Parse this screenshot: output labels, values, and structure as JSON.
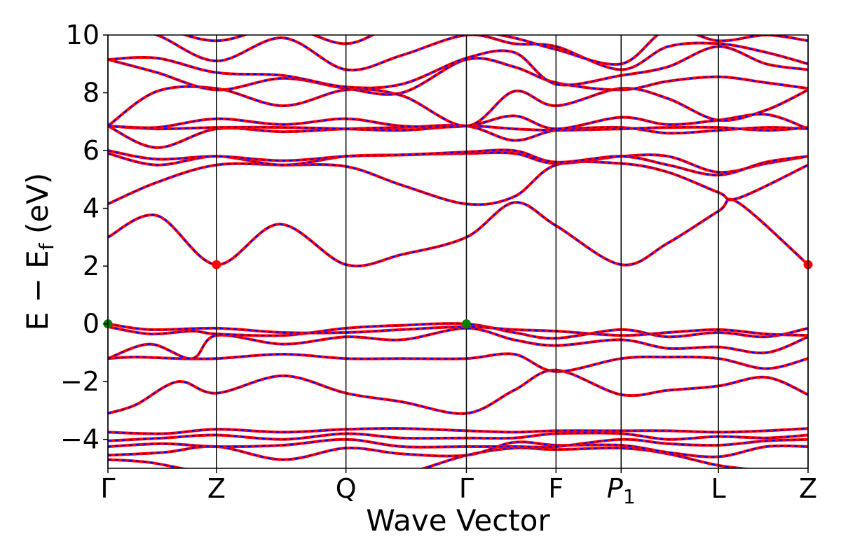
{
  "chart_data": {
    "type": "line",
    "xlabel": "Wave Vector",
    "ylabel_parts": {
      "main": "E − E",
      "sub": "f",
      "unit": " (eV)"
    },
    "ylim": [
      -5,
      10
    ],
    "yticks": [
      -4,
      -2,
      0,
      2,
      4,
      6,
      8,
      10
    ],
    "ytick_labels": [
      "−4",
      "−2",
      "0",
      "2",
      "4",
      "6",
      "8",
      "10"
    ],
    "kpoints": [
      {
        "label": "Γ",
        "x": 0.0
      },
      {
        "label": "Z",
        "x": 0.155
      },
      {
        "label": "Q",
        "x": 0.34
      },
      {
        "label": "Γ",
        "x": 0.512
      },
      {
        "label": "F",
        "x": 0.64
      },
      {
        "label": "P",
        "sub": "1",
        "italic": true,
        "x": 0.733
      },
      {
        "label": "L",
        "x": 0.872
      },
      {
        "label": "Z",
        "x": 1.0
      }
    ],
    "xlim": [
      0,
      1
    ],
    "line_colors": {
      "solid": "#ff0000",
      "dashed": "#0000ff"
    },
    "marker_colors": {
      "vbm": "#008000",
      "cbm": "#ff0000"
    },
    "markers": [
      {
        "kind": "vbm",
        "x": 0.0,
        "y": 0.0
      },
      {
        "kind": "vbm",
        "x": 0.512,
        "y": 0.0
      },
      {
        "kind": "cbm",
        "x": 0.155,
        "y": 2.05
      },
      {
        "kind": "cbm",
        "x": 1.0,
        "y": 2.05
      }
    ],
    "bands": [
      [
        [
          0,
          -4.7
        ],
        [
          0.06,
          -4.8
        ],
        [
          0.155,
          -5.2
        ],
        [
          0.25,
          -5.25
        ],
        [
          0.34,
          -5.3
        ],
        [
          0.42,
          -5.2
        ],
        [
          0.512,
          -4.55
        ],
        [
          0.58,
          -4.3
        ],
        [
          0.64,
          -4.35
        ],
        [
          0.733,
          -4.3
        ],
        [
          0.8,
          -4.5
        ],
        [
          0.872,
          -4.9
        ],
        [
          0.94,
          -5.1
        ],
        [
          1.0,
          -5.3
        ]
      ],
      [
        [
          0,
          -4.55
        ],
        [
          0.08,
          -4.45
        ],
        [
          0.155,
          -4.25
        ],
        [
          0.25,
          -4.7
        ],
        [
          0.34,
          -4.3
        ],
        [
          0.42,
          -4.5
        ],
        [
          0.512,
          -4.55
        ],
        [
          0.58,
          -4.1
        ],
        [
          0.64,
          -4.2
        ],
        [
          0.733,
          -4.2
        ],
        [
          0.8,
          -4.45
        ],
        [
          0.872,
          -4.6
        ],
        [
          0.94,
          -4.25
        ],
        [
          1.0,
          -4.25
        ]
      ],
      [
        [
          0,
          -4.25
        ],
        [
          0.08,
          -4.15
        ],
        [
          0.155,
          -4.25
        ],
        [
          0.25,
          -4.2
        ],
        [
          0.34,
          -4.0
        ],
        [
          0.42,
          -4.25
        ],
        [
          0.512,
          -4.25
        ],
        [
          0.58,
          -4.25
        ],
        [
          0.64,
          -4.25
        ],
        [
          0.733,
          -4.0
        ],
        [
          0.8,
          -4.15
        ],
        [
          0.872,
          -4.2
        ],
        [
          0.94,
          -4.05
        ],
        [
          1.0,
          -4.0
        ]
      ],
      [
        [
          0,
          -4.05
        ],
        [
          0.08,
          -3.95
        ],
        [
          0.155,
          -3.85
        ],
        [
          0.25,
          -4.0
        ],
        [
          0.34,
          -3.8
        ],
        [
          0.42,
          -3.95
        ],
        [
          0.512,
          -3.95
        ],
        [
          0.58,
          -3.95
        ],
        [
          0.64,
          -3.8
        ],
        [
          0.733,
          -3.8
        ],
        [
          0.8,
          -4.0
        ],
        [
          0.872,
          -3.9
        ],
        [
          0.94,
          -3.95
        ],
        [
          1.0,
          -3.85
        ]
      ],
      [
        [
          0,
          -3.75
        ],
        [
          0.08,
          -3.8
        ],
        [
          0.155,
          -3.65
        ],
        [
          0.25,
          -3.75
        ],
        [
          0.34,
          -3.65
        ],
        [
          0.42,
          -3.62
        ],
        [
          0.512,
          -3.7
        ],
        [
          0.58,
          -3.75
        ],
        [
          0.64,
          -3.7
        ],
        [
          0.733,
          -3.7
        ],
        [
          0.8,
          -3.7
        ],
        [
          0.872,
          -3.75
        ],
        [
          0.94,
          -3.7
        ],
        [
          1.0,
          -3.62
        ]
      ],
      [
        [
          0,
          -3.1
        ],
        [
          0.04,
          -2.8
        ],
        [
          0.1,
          -2.0
        ],
        [
          0.155,
          -2.4
        ],
        [
          0.25,
          -1.8
        ],
        [
          0.34,
          -2.4
        ],
        [
          0.42,
          -2.7
        ],
        [
          0.512,
          -3.1
        ],
        [
          0.58,
          -2.3
        ],
        [
          0.64,
          -1.6
        ],
        [
          0.733,
          -2.45
        ],
        [
          0.8,
          -2.3
        ],
        [
          0.872,
          -2.15
        ],
        [
          0.94,
          -1.85
        ],
        [
          1.0,
          -2.45
        ]
      ],
      [
        [
          0,
          -1.2
        ],
        [
          0.04,
          -1.15
        ],
        [
          0.1,
          -1.2
        ],
        [
          0.155,
          -1.2
        ],
        [
          0.25,
          -1.05
        ],
        [
          0.34,
          -1.2
        ],
        [
          0.42,
          -1.2
        ],
        [
          0.512,
          -1.2
        ],
        [
          0.58,
          -1.05
        ],
        [
          0.64,
          -1.65
        ],
        [
          0.733,
          -1.2
        ],
        [
          0.8,
          -1.15
        ],
        [
          0.872,
          -1.2
        ],
        [
          0.94,
          -1.55
        ],
        [
          1.0,
          -1.2
        ]
      ],
      [
        [
          0,
          -1.2
        ],
        [
          0.06,
          -0.7
        ],
        [
          0.12,
          -1.2
        ],
        [
          0.155,
          -0.4
        ],
        [
          0.25,
          -0.7
        ],
        [
          0.34,
          -0.45
        ],
        [
          0.42,
          -0.55
        ],
        [
          0.512,
          -0.15
        ],
        [
          0.58,
          -0.55
        ],
        [
          0.64,
          -0.75
        ],
        [
          0.733,
          -0.55
        ],
        [
          0.8,
          -0.85
        ],
        [
          0.872,
          -0.8
        ],
        [
          0.94,
          -1.0
        ],
        [
          1.0,
          -0.45
        ]
      ],
      [
        [
          0,
          -0.1
        ],
        [
          0.06,
          -0.35
        ],
        [
          0.12,
          -0.25
        ],
        [
          0.155,
          -0.35
        ],
        [
          0.25,
          -0.4
        ],
        [
          0.34,
          -0.15
        ],
        [
          0.42,
          -0.05
        ],
        [
          0.512,
          0.0
        ],
        [
          0.58,
          -0.3
        ],
        [
          0.64,
          -0.5
        ],
        [
          0.733,
          -0.2
        ],
        [
          0.8,
          -0.45
        ],
        [
          0.872,
          -0.3
        ],
        [
          0.94,
          -0.45
        ],
        [
          1.0,
          -0.15
        ]
      ],
      [
        [
          0,
          0.0
        ],
        [
          0.06,
          -0.2
        ],
        [
          0.155,
          -0.15
        ],
        [
          0.25,
          -0.3
        ],
        [
          0.34,
          -0.3
        ],
        [
          0.42,
          -0.2
        ],
        [
          0.512,
          -0.1
        ],
        [
          0.58,
          -0.2
        ],
        [
          0.64,
          -0.25
        ],
        [
          0.733,
          -0.4
        ],
        [
          0.8,
          -0.3
        ],
        [
          0.872,
          -0.2
        ],
        [
          0.94,
          -0.35
        ],
        [
          1.0,
          -0.4
        ]
      ],
      [
        [
          0,
          3.0
        ],
        [
          0.07,
          3.75
        ],
        [
          0.155,
          2.05
        ],
        [
          0.245,
          3.45
        ],
        [
          0.34,
          2.05
        ],
        [
          0.42,
          2.4
        ],
        [
          0.512,
          3.0
        ],
        [
          0.58,
          4.2
        ],
        [
          0.64,
          3.4
        ],
        [
          0.733,
          2.05
        ],
        [
          0.8,
          2.8
        ],
        [
          0.872,
          3.9
        ],
        [
          0.9,
          4.2
        ],
        [
          1.0,
          2.05
        ]
      ],
      [
        [
          0,
          4.15
        ],
        [
          0.07,
          4.9
        ],
        [
          0.155,
          5.5
        ],
        [
          0.25,
          5.5
        ],
        [
          0.34,
          5.45
        ],
        [
          0.42,
          4.8
        ],
        [
          0.512,
          4.15
        ],
        [
          0.58,
          4.4
        ],
        [
          0.64,
          5.5
        ],
        [
          0.733,
          5.55
        ],
        [
          0.8,
          5.25
        ],
        [
          0.872,
          4.55
        ],
        [
          0.9,
          4.35
        ],
        [
          1.0,
          5.5
        ]
      ],
      [
        [
          0,
          5.9
        ],
        [
          0.07,
          5.5
        ],
        [
          0.155,
          5.8
        ],
        [
          0.25,
          5.5
        ],
        [
          0.34,
          5.8
        ],
        [
          0.42,
          5.85
        ],
        [
          0.512,
          5.9
        ],
        [
          0.58,
          5.9
        ],
        [
          0.64,
          5.55
        ],
        [
          0.733,
          5.8
        ],
        [
          0.8,
          5.8
        ],
        [
          0.872,
          5.25
        ],
        [
          0.94,
          5.55
        ],
        [
          1.0,
          5.8
        ]
      ],
      [
        [
          0,
          6.0
        ],
        [
          0.07,
          5.7
        ],
        [
          0.155,
          5.8
        ],
        [
          0.25,
          5.65
        ],
        [
          0.34,
          5.8
        ],
        [
          0.42,
          5.85
        ],
        [
          0.512,
          5.95
        ],
        [
          0.58,
          6.0
        ],
        [
          0.64,
          5.6
        ],
        [
          0.733,
          5.8
        ],
        [
          0.8,
          5.5
        ],
        [
          0.872,
          5.15
        ],
        [
          0.94,
          5.6
        ],
        [
          1.0,
          5.8
        ]
      ],
      [
        [
          0,
          6.85
        ],
        [
          0.07,
          6.1
        ],
        [
          0.155,
          6.75
        ],
        [
          0.25,
          6.65
        ],
        [
          0.34,
          6.75
        ],
        [
          0.42,
          6.8
        ],
        [
          0.512,
          6.85
        ],
        [
          0.58,
          6.35
        ],
        [
          0.64,
          6.7
        ],
        [
          0.733,
          6.8
        ],
        [
          0.8,
          6.6
        ],
        [
          0.872,
          6.7
        ],
        [
          0.94,
          6.8
        ],
        [
          1.0,
          6.75
        ]
      ],
      [
        [
          0,
          6.85
        ],
        [
          0.07,
          6.75
        ],
        [
          0.155,
          6.8
        ],
        [
          0.25,
          6.8
        ],
        [
          0.34,
          6.75
        ],
        [
          0.42,
          6.7
        ],
        [
          0.512,
          6.85
        ],
        [
          0.58,
          6.75
        ],
        [
          0.64,
          6.7
        ],
        [
          0.733,
          6.75
        ],
        [
          0.8,
          6.8
        ],
        [
          0.872,
          6.8
        ],
        [
          0.94,
          6.7
        ],
        [
          1.0,
          6.8
        ]
      ],
      [
        [
          0,
          6.85
        ],
        [
          0.07,
          6.8
        ],
        [
          0.155,
          7.1
        ],
        [
          0.25,
          6.9
        ],
        [
          0.34,
          7.1
        ],
        [
          0.42,
          6.85
        ],
        [
          0.512,
          6.85
        ],
        [
          0.58,
          7.2
        ],
        [
          0.64,
          6.75
        ],
        [
          0.733,
          7.15
        ],
        [
          0.8,
          6.9
        ],
        [
          0.872,
          7.05
        ],
        [
          0.94,
          7.25
        ],
        [
          1.0,
          6.75
        ]
      ],
      [
        [
          0,
          6.85
        ],
        [
          0.07,
          8.05
        ],
        [
          0.155,
          8.15
        ],
        [
          0.25,
          7.55
        ],
        [
          0.34,
          8.1
        ],
        [
          0.42,
          7.9
        ],
        [
          0.512,
          6.85
        ],
        [
          0.58,
          8.05
        ],
        [
          0.64,
          7.55
        ],
        [
          0.733,
          8.15
        ],
        [
          0.8,
          7.8
        ],
        [
          0.872,
          7.05
        ],
        [
          0.94,
          7.4
        ],
        [
          1.0,
          8.1
        ]
      ],
      [
        [
          0,
          9.15
        ],
        [
          0.07,
          8.7
        ],
        [
          0.155,
          8.1
        ],
        [
          0.25,
          8.5
        ],
        [
          0.34,
          8.15
        ],
        [
          0.42,
          8.0
        ],
        [
          0.512,
          9.15
        ],
        [
          0.58,
          8.9
        ],
        [
          0.64,
          8.35
        ],
        [
          0.733,
          8.1
        ],
        [
          0.8,
          8.4
        ],
        [
          0.872,
          8.55
        ],
        [
          0.94,
          8.35
        ],
        [
          1.0,
          8.15
        ]
      ],
      [
        [
          0,
          9.15
        ],
        [
          0.07,
          9.2
        ],
        [
          0.155,
          8.7
        ],
        [
          0.25,
          8.6
        ],
        [
          0.34,
          8.2
        ],
        [
          0.42,
          8.3
        ],
        [
          0.512,
          9.2
        ],
        [
          0.58,
          9.4
        ],
        [
          0.64,
          8.3
        ],
        [
          0.733,
          8.6
        ],
        [
          0.8,
          8.9
        ],
        [
          0.872,
          9.6
        ],
        [
          0.94,
          9.0
        ],
        [
          1.0,
          8.8
        ]
      ],
      [
        [
          0,
          10.4
        ],
        [
          0.07,
          10.0
        ],
        [
          0.155,
          9.1
        ],
        [
          0.25,
          9.9
        ],
        [
          0.34,
          8.8
        ],
        [
          0.42,
          9.3
        ],
        [
          0.512,
          10.0
        ],
        [
          0.58,
          9.7
        ],
        [
          0.64,
          9.6
        ],
        [
          0.733,
          8.8
        ],
        [
          0.8,
          9.6
        ],
        [
          0.872,
          9.7
        ],
        [
          0.94,
          9.4
        ],
        [
          1.0,
          9.0
        ]
      ],
      [
        [
          0,
          10.6
        ],
        [
          0.07,
          10.3
        ],
        [
          0.155,
          9.8
        ],
        [
          0.25,
          10.3
        ],
        [
          0.34,
          9.7
        ],
        [
          0.42,
          10.4
        ],
        [
          0.512,
          10.2
        ],
        [
          0.58,
          9.9
        ],
        [
          0.64,
          9.5
        ],
        [
          0.733,
          9.0
        ],
        [
          0.8,
          10.2
        ],
        [
          0.872,
          9.8
        ],
        [
          0.94,
          10.0
        ],
        [
          1.0,
          9.8
        ]
      ]
    ]
  }
}
